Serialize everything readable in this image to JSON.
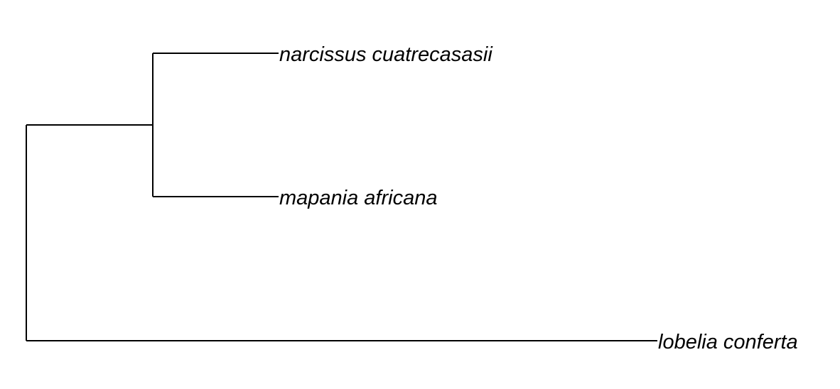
{
  "tree": {
    "line_color": "#000000",
    "background_color": "#ffffff",
    "root": {
      "children": [
        {
          "children": [
            {
              "label": "narcissus cuatrecasasii"
            },
            {
              "label": "mapania africana"
            }
          ]
        },
        {
          "label": "lobelia conferta"
        }
      ]
    }
  }
}
